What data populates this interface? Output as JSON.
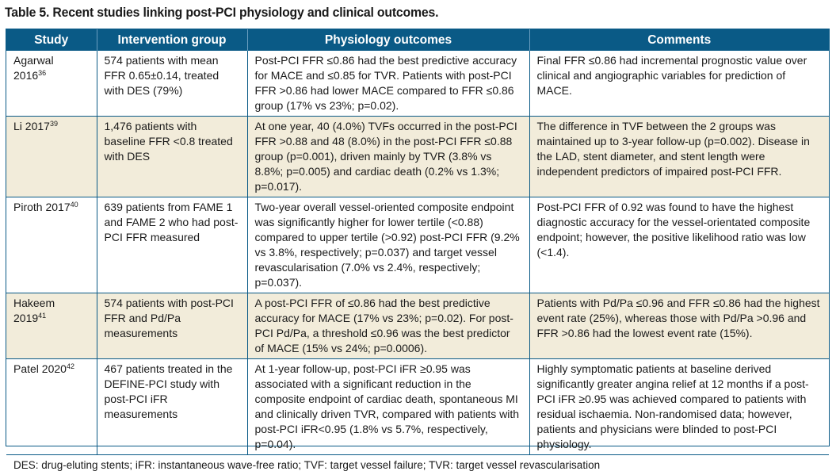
{
  "title": "Table 5. Recent studies linking post-PCI physiology and clinical outcomes.",
  "headers": {
    "study": "Study",
    "intervention": "Intervention group",
    "physiology": "Physiology outcomes",
    "comments": "Comments"
  },
  "rows": [
    {
      "study": "Agarwal 2016",
      "ref": "36",
      "intervention": "574 patients with mean FFR 0.65±0.14, treated with DES (79%)",
      "physiology": "Post-PCI FFR ≤0.86 had the best predictive accuracy for MACE and ≤0.85 for TVR. Patients with post-PCI FFR >0.86 had lower MACE compared to FFR ≤0.86 group (17% vs 23%; p=0.02).",
      "comments": "Final FFR ≤0.86 had incremental prognostic value over clinical and angiographic variables for prediction of MACE."
    },
    {
      "study": "Li 2017",
      "ref": "39",
      "intervention": "1,476 patients with baseline FFR <0.8 treated with DES",
      "physiology": "At one year, 40 (4.0%) TVFs occurred in the post-PCI FFR >0.88 and 48 (8.0%) in the post-PCI FFR ≤0.88 group (p=0.001), driven mainly by TVR (3.8% vs 8.8%; p=0.005) and cardiac death (0.2% vs 1.3%; p=0.017).",
      "comments": "The difference in TVF between the 2 groups was maintained up to 3-year follow-up (p=0.002). Disease in the LAD, stent diameter, and stent length were independent predictors of impaired post-PCI FFR."
    },
    {
      "study": "Piroth 2017",
      "ref": "40",
      "intervention": "639 patients from FAME 1 and FAME 2 who had post-PCI FFR measured",
      "physiology": "Two-year overall vessel-oriented composite endpoint was significantly higher for lower tertile (<0.88) compared to upper tertile (>0.92) post-PCI FFR (9.2% vs 3.8%, respectively; p=0.037) and target vessel revascularisation (7.0% vs 2.4%, respectively; p=0.037).",
      "comments": "Post-PCI FFR of 0.92 was found to have the highest diagnostic accuracy for the vessel-orientated composite endpoint; however, the positive likelihood ratio was low (<1.4)."
    },
    {
      "study": "Hakeem 2019",
      "ref": "41",
      "intervention": "574 patients with post-PCI FFR and Pd/Pa measurements",
      "physiology": "A post-PCI FFR of ≤0.86 had the best predictive accuracy for MACE (17% vs 23%; p=0.02). For post-PCI Pd/Pa, a threshold ≤0.96 was the best predictor of MACE (15% vs 24%; p=0.0006).",
      "comments": "Patients with Pd/Pa ≤0.96 and FFR ≤0.86 had the highest event rate (25%), whereas those with Pd/Pa >0.96 and FFR >0.86 had the lowest event rate (15%)."
    },
    {
      "study": "Patel 2020",
      "ref": "42",
      "intervention": "467 patients treated in the DEFINE-PCI study with post-PCI iFR measurements",
      "physiology": "At 1-year follow-up, post-PCI iFR ≥0.95 was associated with a significant reduction in the composite endpoint of cardiac death, spontaneous MI and clinically driven TVR, compared with patients with post-PCI iFR<0.95 (1.8% vs 5.7%, respectively, p=0.04).",
      "comments": "Highly symptomatic patients at baseline derived significantly greater angina relief at 12 months if a post-PCI iFR ≥0.95 was achieved compared to patients with residual ischaemia. Non-randomised data; however, patients and physicians were blinded to post-PCI physiology."
    }
  ],
  "footnote": "DES: drug-eluting stents; iFR: instantaneous wave-free ratio; TVF: target vessel failure; TVR: target vessel revascularisation",
  "colors": {
    "header_bg": "#0a5a86",
    "alt_row_bg": "#f2ecda"
  }
}
